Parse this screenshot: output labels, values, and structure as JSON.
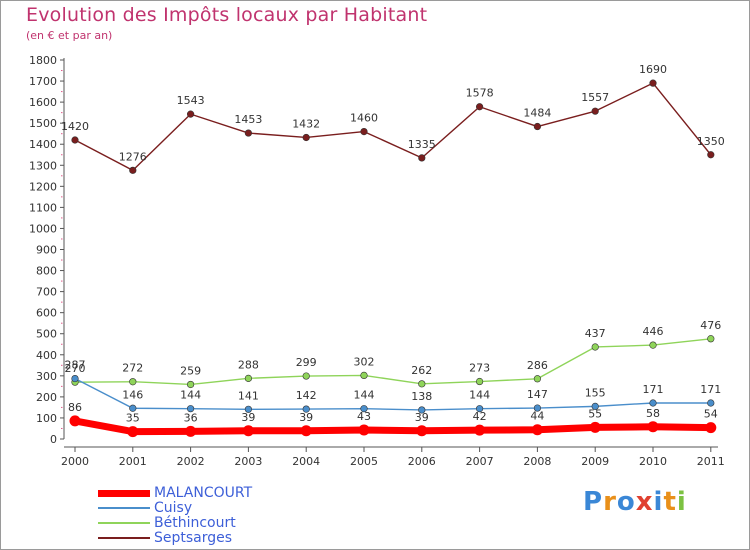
{
  "title": "Evolution des Impôts locaux par Habitant",
  "subtitle": "(en € et par an)",
  "logo": {
    "text": "Proxiti",
    "letters": [
      "P",
      "r",
      "o",
      "x",
      "i",
      "t",
      "i"
    ],
    "colors": [
      "#3a87d6",
      "#e9901a",
      "#3a87d6",
      "#e04030",
      "#3a87d6",
      "#e9901a",
      "#7cc242"
    ]
  },
  "chart_data": {
    "type": "line",
    "title": "Evolution des Impôts locaux par Habitant",
    "subtitle": "(en € et par an)",
    "xlabel": "",
    "ylabel": "",
    "x": [
      "2000",
      "2001",
      "2002",
      "2003",
      "2004",
      "2005",
      "2006",
      "2007",
      "2008",
      "2009",
      "2010",
      "2011"
    ],
    "ylim": [
      0,
      1800
    ],
    "yticks": [
      0,
      100,
      200,
      300,
      400,
      500,
      600,
      700,
      800,
      900,
      1000,
      1100,
      1200,
      1300,
      1400,
      1500,
      1600,
      1700,
      1800
    ],
    "grid": false,
    "legend_position": "bottom-left",
    "series": [
      {
        "name": "MALANCOURT",
        "color": "#ff0000",
        "values": [
          86,
          35,
          36,
          39,
          39,
          43,
          39,
          42,
          44,
          55,
          58,
          54
        ]
      },
      {
        "name": "Cuisy",
        "color": "#4a8ecb",
        "values": [
          287,
          146,
          144,
          141,
          142,
          144,
          138,
          144,
          147,
          155,
          171,
          171
        ]
      },
      {
        "name": "Béthincourt",
        "color": "#8fd45a",
        "values": [
          270,
          272,
          259,
          288,
          299,
          302,
          262,
          273,
          286,
          437,
          446,
          476
        ]
      },
      {
        "name": "Septsarges",
        "color": "#7a1e1e",
        "values": [
          1420,
          1276,
          1543,
          1453,
          1432,
          1460,
          1335,
          1578,
          1484,
          1557,
          1690,
          1350
        ]
      }
    ]
  }
}
